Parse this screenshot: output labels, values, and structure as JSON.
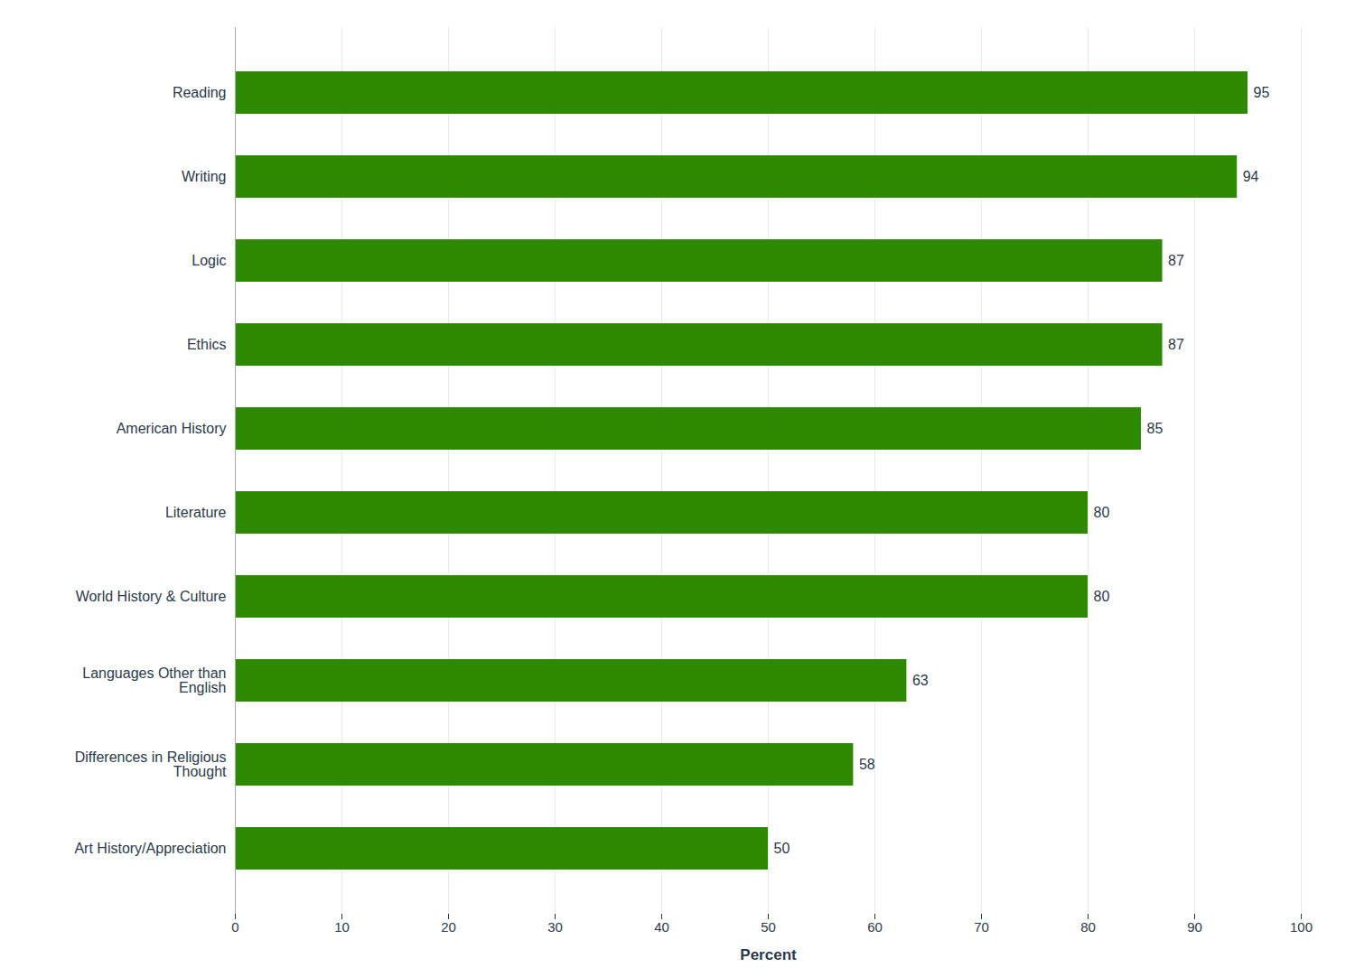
{
  "chart_data": {
    "type": "bar",
    "orientation": "horizontal",
    "categories": [
      "Art History/Appreciation",
      "Differences in Religious\nThought",
      "Languages Other than\nEnglish",
      "World History & Culture",
      "Literature",
      "American History",
      "Ethics",
      "Logic",
      "Writing",
      "Reading"
    ],
    "values": [
      50,
      58,
      63,
      80,
      80,
      85,
      87,
      87,
      94,
      95
    ],
    "color": "#2d8a00",
    "xlabel": "Percent",
    "xlim": [
      0,
      100
    ],
    "xticks": [
      0,
      10,
      20,
      30,
      40,
      50,
      60,
      70,
      80,
      90,
      100
    ],
    "grid": true,
    "data_labels": true
  }
}
